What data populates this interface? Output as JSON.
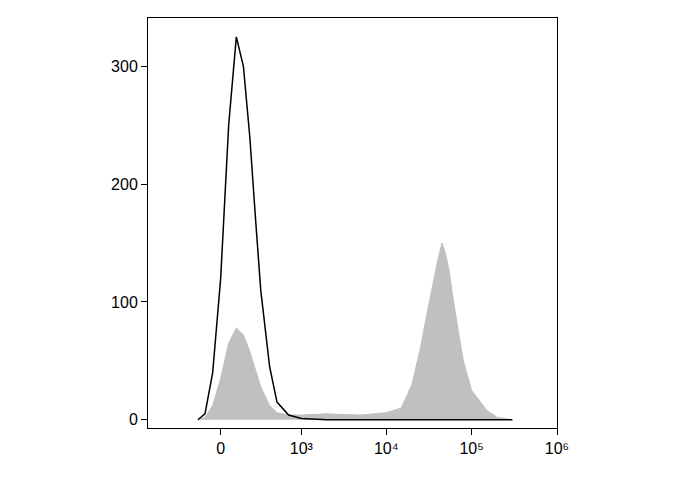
{
  "chart_data": {
    "type": "histogram",
    "x": [
      -150,
      -100,
      -50,
      0,
      50,
      100,
      150,
      200,
      250,
      300,
      400,
      500,
      700,
      1000,
      2000,
      5000,
      10000,
      15000,
      20000,
      25000,
      30000,
      35000,
      40000,
      45000,
      50000,
      55000,
      60000,
      70000,
      80000,
      100000,
      150000,
      200000,
      300000
    ],
    "series": [
      {
        "type": "area",
        "color": "#c0c0c0",
        "values": [
          0,
          2,
          12,
          35,
          65,
          78,
          72,
          58,
          42,
          28,
          12,
          6,
          4,
          4,
          5,
          4,
          6,
          10,
          30,
          60,
          90,
          115,
          135,
          150,
          140,
          125,
          105,
          75,
          50,
          25,
          8,
          2,
          0
        ]
      },
      {
        "type": "line",
        "color": "#000000",
        "values": [
          0,
          5,
          40,
          120,
          250,
          325,
          300,
          240,
          170,
          110,
          45,
          15,
          4,
          1,
          0,
          0,
          0,
          0,
          0,
          0,
          0,
          0,
          0,
          0,
          0,
          0,
          0,
          0,
          0,
          0,
          0,
          0,
          0
        ]
      }
    ],
    "xlim": [
      -800,
      1000000
    ],
    "xticks": [
      0,
      {
        "value": 1000,
        "label": "10³"
      },
      {
        "value": 10000,
        "label": "10⁴"
      },
      {
        "value": 100000,
        "label": "10⁵"
      },
      {
        "value": 1000000,
        "label": "10⁶"
      }
    ],
    "ylim": [
      -7,
      341
    ],
    "yticks": [
      0,
      100,
      200,
      300
    ],
    "grid": false
  }
}
